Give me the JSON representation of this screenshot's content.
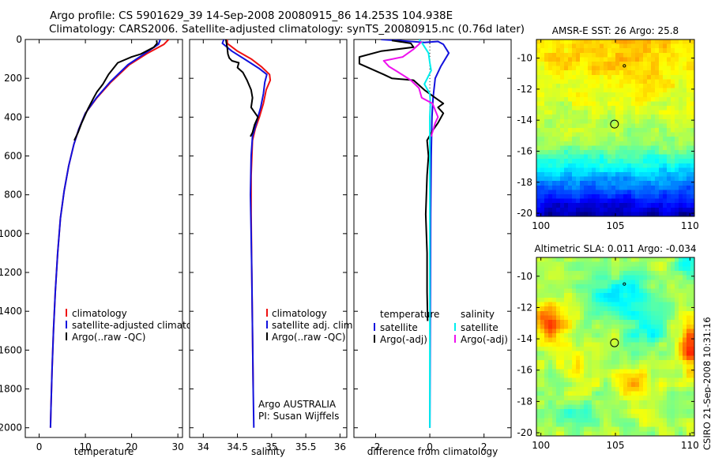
{
  "header": {
    "line1": "Argo profile: CS 5901629_39 14-Sep-2008 20080915_86 14.253S 104.938E",
    "line2": "Climatology: CARS2006. Satellite-adjusted climatology: synTS_20080915.nc (0.76d later)"
  },
  "footer": {
    "credit": "CSIRO 21-Sep-2008 10:31:16"
  },
  "colors": {
    "red": "#ee1111",
    "blue": "#1111dd",
    "black": "#000000",
    "cyan": "#00eeee",
    "magenta": "#ee11ee",
    "dotted": "#000000"
  },
  "chart_data": [
    {
      "type": "line",
      "name": "temperature",
      "xlabel": "temperature",
      "xlim": [
        -3,
        31
      ],
      "ylim": [
        2050,
        0
      ],
      "xticks": [
        "0",
        "10",
        "20",
        "30"
      ],
      "xtick_values": [
        0,
        10,
        20,
        30
      ],
      "yticks": [
        "0",
        "200",
        "400",
        "600",
        "800",
        "1000",
        "1200",
        "1400",
        "1600",
        "1800",
        "2000"
      ],
      "ytick_values": [
        0,
        200,
        400,
        600,
        800,
        1000,
        1200,
        1400,
        1600,
        1800,
        2000
      ],
      "legend": [
        "climatology",
        "satellite-adjusted climatology",
        "Argo(..raw -QC)"
      ],
      "series": [
        {
          "name": "climatology",
          "color": "red",
          "points": [
            [
              28,
              0
            ],
            [
              27,
              25
            ],
            [
              23.5,
              70
            ],
            [
              19.5,
              130
            ],
            [
              15.5,
              220
            ],
            [
              12.5,
              300
            ],
            [
              10,
              380
            ],
            [
              8.6,
              460
            ],
            [
              7.5,
              540
            ],
            [
              6.4,
              650
            ],
            [
              5.4,
              780
            ],
            [
              4.6,
              920
            ],
            [
              4,
              1100
            ],
            [
              3.5,
              1300
            ],
            [
              3.1,
              1500
            ],
            [
              2.8,
              1700
            ],
            [
              2.55,
              1900
            ],
            [
              2.45,
              2000
            ]
          ]
        },
        {
          "name": "satellite-adjusted climatology",
          "color": "blue",
          "points": [
            [
              26.2,
              0
            ],
            [
              25.8,
              25
            ],
            [
              23,
              70
            ],
            [
              19.2,
              130
            ],
            [
              15.3,
              220
            ],
            [
              12.4,
              300
            ],
            [
              10,
              380
            ],
            [
              8.6,
              460
            ],
            [
              7.5,
              540
            ],
            [
              6.4,
              650
            ],
            [
              5.4,
              780
            ],
            [
              4.6,
              920
            ],
            [
              4,
              1100
            ],
            [
              3.5,
              1300
            ],
            [
              3.1,
              1500
            ],
            [
              2.8,
              1700
            ],
            [
              2.55,
              1900
            ],
            [
              2.45,
              2000
            ]
          ]
        },
        {
          "name": "Argo(..raw -QC)",
          "color": "black",
          "points": [
            [
              25.4,
              5
            ],
            [
              25.5,
              20
            ],
            [
              24.8,
              40
            ],
            [
              22,
              75
            ],
            [
              20,
              90
            ],
            [
              17,
              120
            ],
            [
              15,
              180
            ],
            [
              13.8,
              230
            ],
            [
              12.5,
              270
            ],
            [
              11.8,
              300
            ],
            [
              10.5,
              360
            ],
            [
              9.2,
              430
            ],
            [
              8.4,
              480
            ],
            [
              7.6,
              520
            ]
          ]
        }
      ]
    },
    {
      "type": "line",
      "name": "salinity",
      "xlabel": "salinity",
      "xlim": [
        33.8,
        36.1
      ],
      "ylim": [
        2050,
        0
      ],
      "xticks": [
        "34",
        "34.5",
        "35",
        "35.5",
        "36"
      ],
      "xtick_values": [
        34,
        34.5,
        35,
        35.5,
        36
      ],
      "legend": [
        "climatology",
        "satellite adj. clim.",
        "Argo(..raw -QC)"
      ],
      "annotations": [
        "Argo AUSTRALIA",
        "PI: Susan Wijffels"
      ],
      "series": [
        {
          "name": "climatology",
          "color": "red",
          "points": [
            [
              34.35,
              0
            ],
            [
              34.35,
              20
            ],
            [
              34.5,
              60
            ],
            [
              34.7,
              100
            ],
            [
              34.85,
              140
            ],
            [
              34.97,
              180
            ],
            [
              34.98,
              210
            ],
            [
              34.92,
              260
            ],
            [
              34.88,
              330
            ],
            [
              34.82,
              400
            ],
            [
              34.76,
              460
            ],
            [
              34.72,
              520
            ],
            [
              34.7,
              700
            ],
            [
              34.7,
              900
            ],
            [
              34.71,
              1200
            ],
            [
              34.72,
              1500
            ],
            [
              34.73,
              1800
            ]
          ]
        },
        {
          "name": "satellite adj. clim.",
          "color": "blue",
          "points": [
            [
              34.3,
              0
            ],
            [
              34.28,
              20
            ],
            [
              34.42,
              60
            ],
            [
              34.6,
              100
            ],
            [
              34.82,
              150
            ],
            [
              34.93,
              180
            ],
            [
              34.9,
              220
            ],
            [
              34.88,
              280
            ],
            [
              34.84,
              350
            ],
            [
              34.8,
              400
            ],
            [
              34.76,
              450
            ],
            [
              34.72,
              500
            ],
            [
              34.7,
              600
            ],
            [
              34.69,
              800
            ],
            [
              34.7,
              1000
            ],
            [
              34.71,
              1200
            ],
            [
              34.72,
              1500
            ],
            [
              34.73,
              1800
            ],
            [
              34.74,
              2000
            ]
          ]
        },
        {
          "name": "Argo(..raw -QC)",
          "color": "black",
          "points": [
            [
              34.33,
              0
            ],
            [
              34.35,
              40
            ],
            [
              34.36,
              75
            ],
            [
              34.38,
              95
            ],
            [
              34.42,
              110
            ],
            [
              34.52,
              120
            ],
            [
              34.5,
              145
            ],
            [
              34.58,
              170
            ],
            [
              34.64,
              210
            ],
            [
              34.7,
              260
            ],
            [
              34.72,
              300
            ],
            [
              34.7,
              350
            ],
            [
              34.8,
              400
            ],
            [
              34.75,
              440
            ],
            [
              34.72,
              480
            ],
            [
              34.69,
              500
            ]
          ]
        }
      ]
    },
    {
      "type": "line",
      "name": "difference",
      "xlabel": "difference from climatology",
      "xlim": [
        -2.8,
        3.0
      ],
      "ylim": [
        2050,
        0
      ],
      "xticks": [
        "-2",
        "0",
        "2"
      ],
      "xtick_values": [
        -2,
        0,
        2
      ],
      "legend_headers": [
        "temperature",
        "salinity"
      ],
      "legend": [
        "satellite",
        "Argo(-adj)",
        "satellite",
        "Argo(-adj)"
      ],
      "series": [
        {
          "name": "temperature satellite",
          "color": "blue",
          "points": [
            [
              -1.8,
              0
            ],
            [
              -1.2,
              5
            ],
            [
              -0.2,
              15
            ],
            [
              0.3,
              10
            ],
            [
              0.5,
              25
            ],
            [
              0.7,
              70
            ],
            [
              0.4,
              140
            ],
            [
              0.2,
              200
            ],
            [
              0.12,
              300
            ],
            [
              0.08,
              400
            ],
            [
              0.05,
              600
            ],
            [
              0.03,
              900
            ],
            [
              0.02,
              1300
            ],
            [
              0.01,
              1700
            ],
            [
              0,
              2000
            ]
          ]
        },
        {
          "name": "temperature Argo(-adj)",
          "color": "black",
          "points": [
            [
              -1.4,
              5
            ],
            [
              -0.7,
              20
            ],
            [
              -0.6,
              40
            ],
            [
              -1.8,
              60
            ],
            [
              -2.6,
              90
            ],
            [
              -2.6,
              125
            ],
            [
              -1.7,
              180
            ],
            [
              -1.4,
              200
            ],
            [
              -0.6,
              210
            ],
            [
              -0.2,
              260
            ],
            [
              0.2,
              300
            ],
            [
              0.5,
              330
            ],
            [
              0.3,
              350
            ],
            [
              0.5,
              380
            ],
            [
              0.3,
              430
            ],
            [
              0.1,
              470
            ],
            [
              -0.1,
              520
            ],
            [
              -0.05,
              600
            ],
            [
              -0.1,
              700
            ],
            [
              -0.15,
              900
            ],
            [
              -0.1,
              1100
            ],
            [
              -0.1,
              1300
            ],
            [
              -0.08,
              1450
            ]
          ]
        },
        {
          "name": "salinity satellite",
          "color": "cyan",
          "points": [
            [
              -0.4,
              0
            ],
            [
              -0.3,
              15
            ],
            [
              -0.05,
              70
            ],
            [
              0,
              120
            ],
            [
              0.05,
              160
            ],
            [
              -0.2,
              230
            ],
            [
              0,
              280
            ],
            [
              0.02,
              330
            ],
            [
              0,
              400
            ],
            [
              0,
              700
            ],
            [
              0,
              1100
            ],
            [
              0,
              1500
            ],
            [
              0,
              2000
            ]
          ]
        },
        {
          "name": "salinity Argo(-adj)",
          "color": "magenta",
          "points": [
            [
              -0.3,
              10
            ],
            [
              -0.4,
              25
            ],
            [
              -0.6,
              50
            ],
            [
              -1,
              90
            ],
            [
              -1.7,
              110
            ],
            [
              -1.5,
              140
            ],
            [
              -1.2,
              165
            ],
            [
              -0.7,
              210
            ],
            [
              -0.4,
              250
            ],
            [
              -0.3,
              300
            ],
            [
              0.1,
              330
            ],
            [
              0.3,
              400
            ],
            [
              0.2,
              430
            ],
            [
              0.05,
              500
            ]
          ]
        }
      ]
    },
    {
      "type": "heatmap",
      "name": "sst-map",
      "title": "AMSR-E SST: 26 Argo: 25.8",
      "xlim": [
        99.7,
        110.3
      ],
      "ylim": [
        -20.2,
        -8.8
      ],
      "xticks": [
        "100",
        "105",
        "110"
      ],
      "xtick_values": [
        100,
        105,
        110
      ],
      "yticks": [
        "-10",
        "-12",
        "-14",
        "-16",
        "-18",
        "-20"
      ],
      "ytick_values": [
        -10,
        -12,
        -14,
        -16,
        -18,
        -20
      ],
      "profile_marker": {
        "lon": 104.938,
        "lat": -14.253
      },
      "small_marker": {
        "lon": 105.6,
        "lat": -10.5
      }
    },
    {
      "type": "heatmap",
      "name": "sla-map",
      "title": "Altimetric SLA: 0.011 Argo: -0.034",
      "xlim": [
        99.7,
        110.3
      ],
      "ylim": [
        -20.2,
        -8.8
      ],
      "xticks": [
        "100",
        "105",
        "110"
      ],
      "xtick_values": [
        100,
        105,
        110
      ],
      "yticks": [
        "-10",
        "-12",
        "-14",
        "-16",
        "-18",
        "-20"
      ],
      "ytick_values": [
        -10,
        -12,
        -14,
        -16,
        -18,
        -20
      ],
      "profile_marker": {
        "lon": 104.938,
        "lat": -14.253
      },
      "small_marker": {
        "lon": 105.6,
        "lat": -10.5
      }
    }
  ]
}
